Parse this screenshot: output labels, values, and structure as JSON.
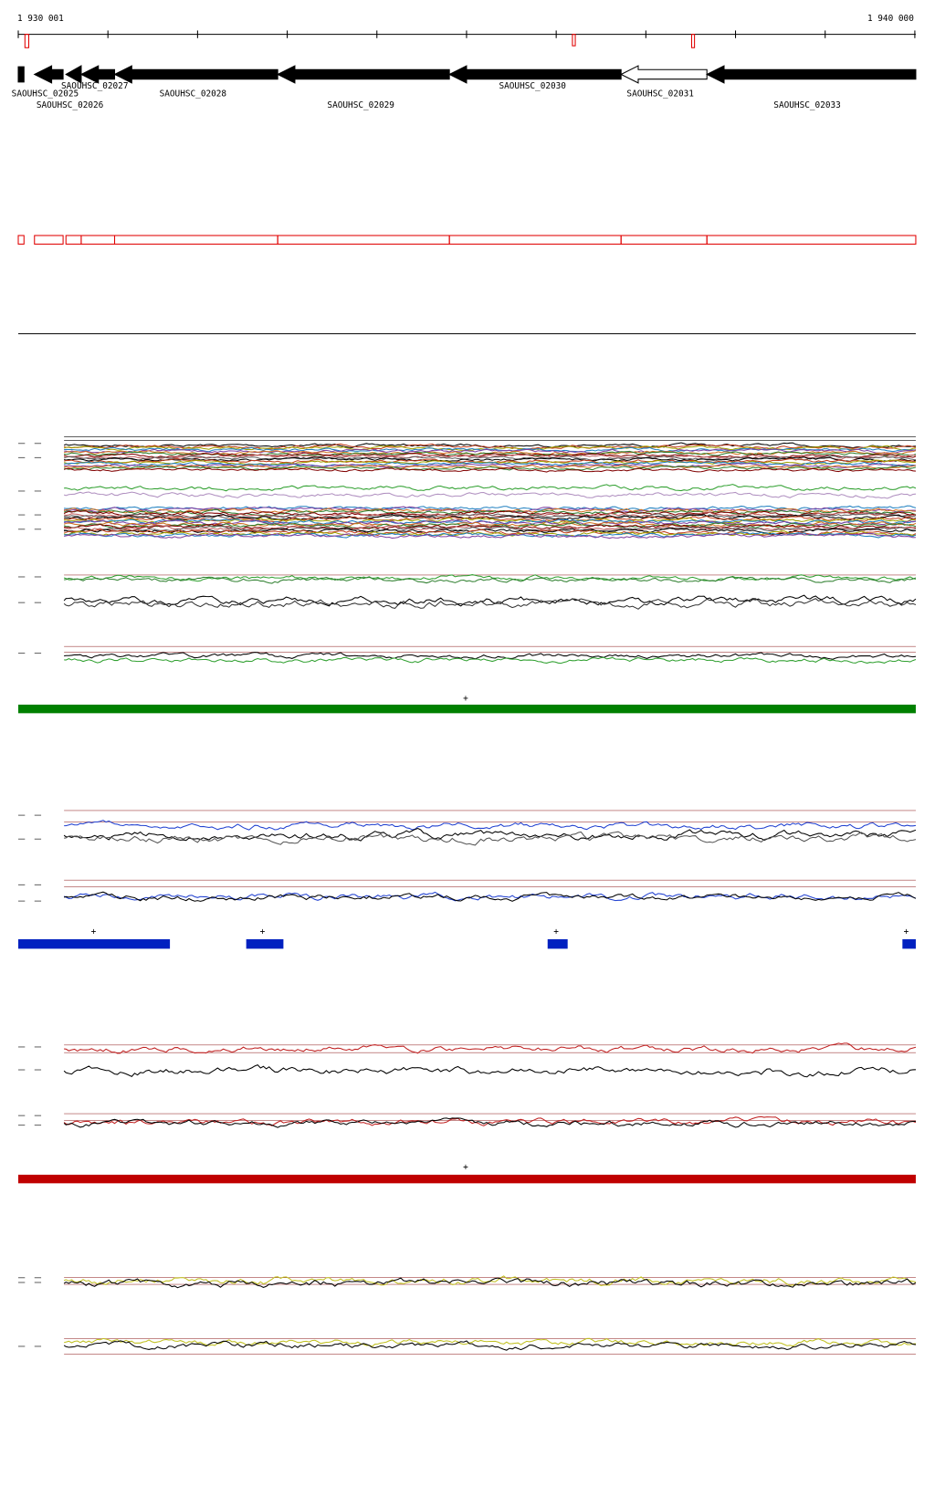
{
  "ruler": {
    "start": "1 930 001",
    "end": "1 940 000"
  },
  "genes": [
    {
      "label": "SAOUHSC_02025"
    },
    {
      "label": "SAOUHSC_02026"
    },
    {
      "label": "SAOUHSC_02027"
    },
    {
      "label": "SAOUHSC_02028"
    },
    {
      "label": "SAOUHSC_02029"
    },
    {
      "label": "SAOUHSC_02030"
    },
    {
      "label": "SAOUHSC_02031"
    },
    {
      "label": "SAOUHSC_02033"
    }
  ],
  "strand_marks": {
    "green": [
      "+"
    ],
    "blue": [
      "+",
      "+",
      "+",
      "+"
    ],
    "red": [
      "+"
    ]
  }
}
